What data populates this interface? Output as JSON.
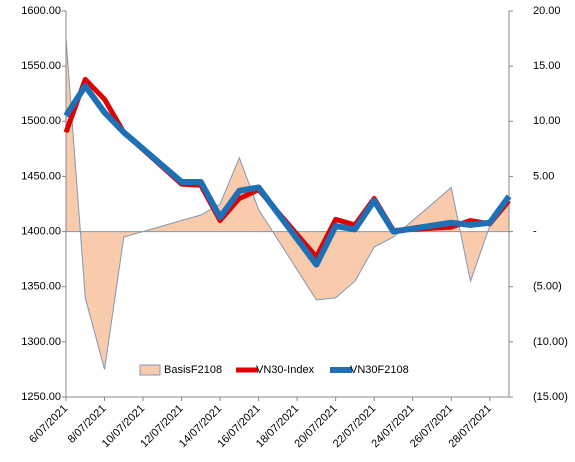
{
  "chart_data": {
    "type": "combo",
    "x": [
      "6/07/2021",
      "7/07/2021",
      "8/07/2021",
      "9/07/2021",
      "12/07/2021",
      "13/07/2021",
      "14/07/2021",
      "15/07/2021",
      "16/07/2021",
      "19/07/2021",
      "20/07/2021",
      "21/07/2021",
      "22/07/2021",
      "23/07/2021",
      "26/07/2021",
      "27/07/2021",
      "28/07/2021",
      "29/07/2021"
    ],
    "xlim": [
      "6/07/2021",
      "29/07/2021"
    ],
    "xticks": [
      "6/07/2021",
      "8/07/2021",
      "10/07/2021",
      "12/07/2021",
      "14/07/2021",
      "16/07/2021",
      "18/07/2021",
      "20/07/2021",
      "22/07/2021",
      "24/07/2021",
      "26/07/2021",
      "28/07/2021"
    ],
    "ylim": [
      1250,
      1600
    ],
    "yticks": [
      {
        "value": 1250,
        "label": "1250.00"
      },
      {
        "value": 1300,
        "label": "1300.00"
      },
      {
        "value": 1350,
        "label": "1350.00"
      },
      {
        "value": 1400,
        "label": "1400.00"
      },
      {
        "value": 1450,
        "label": "1450.00"
      },
      {
        "value": 1500,
        "label": "1500.00"
      },
      {
        "value": 1550,
        "label": "1550.00"
      },
      {
        "value": 1600,
        "label": "1600.00"
      }
    ],
    "y2lim": [
      -15,
      20
    ],
    "y2ticks": [
      {
        "value": -15,
        "label": "(15.00)"
      },
      {
        "value": -10,
        "label": "(10.00)"
      },
      {
        "value": -5,
        "label": "(5.00)"
      },
      {
        "value": 0,
        "label": "-"
      },
      {
        "value": 5,
        "label": "5.00"
      },
      {
        "value": 10,
        "label": "10.00"
      },
      {
        "value": 15,
        "label": "15.00"
      },
      {
        "value": 20,
        "label": "20.00"
      }
    ],
    "series": [
      {
        "name": "BasisF2108",
        "kind": "area",
        "axis": "y2",
        "color": "#f8cbad",
        "line_color": "#8497b0",
        "values": [
          17.5,
          -6.0,
          -12.5,
          -0.5,
          1.0,
          1.5,
          2.5,
          6.7,
          2.0,
          -6.2,
          -6.0,
          -4.5,
          -1.4,
          -0.5,
          4.0,
          -4.5,
          0.5,
          3.0
        ]
      },
      {
        "name": "VN30-Index",
        "kind": "line",
        "color": "#e00000",
        "values": [
          1490,
          1538,
          1520,
          1490,
          1443,
          1442,
          1410,
          1430,
          1438,
          1377,
          1411,
          1406,
          1430,
          1401,
          1404,
          1410,
          1407,
          1428
        ]
      },
      {
        "name": "VN30F2108",
        "kind": "line",
        "color": "#1f6fb5",
        "values": [
          1505,
          1532,
          1508,
          1490,
          1445,
          1445,
          1413,
          1437,
          1440,
          1370,
          1405,
          1402,
          1428,
          1400,
          1408,
          1406,
          1408,
          1432
        ]
      }
    ]
  }
}
